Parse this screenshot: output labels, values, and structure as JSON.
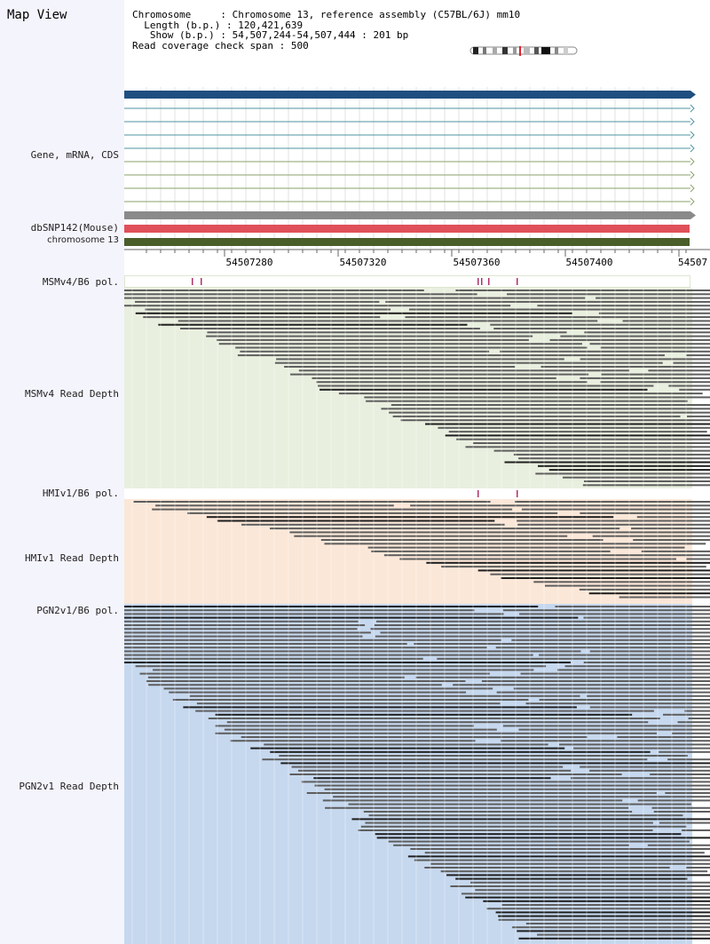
{
  "page": {
    "title": "Map View"
  },
  "info": {
    "chromosome_label": "Chromosome",
    "chromosome_value": "Chromosome 13, reference assembly (C57BL/6J) mm10",
    "length_label": "Length (b.p.)",
    "length_value": "120,421,639",
    "show_label": "Show (b.p.)",
    "show_value": "54,507,244-54,507,444 : 201 bp",
    "coverage_label": "Read coverage check span",
    "coverage_value": "500"
  },
  "labels": {
    "gene": "Gene, mRNA, CDS",
    "dbsnp": "dbSNP142(Mouse)",
    "chromosome": "chromosome 13",
    "msm_pol": "MSMv4/B6 pol.",
    "msm_depth": "MSMv4 Read Depth",
    "hmi_pol": "HMIv1/B6 pol.",
    "hmi_depth": "HMIv1 Read Depth",
    "pgn_pol": "PGN2v1/B6 pol.",
    "pgn_depth": "PGN2v1 Read Depth"
  },
  "ruler": {
    "ticks": [
      "54507280",
      "54507320",
      "54507360",
      "54507400",
      "54507"
    ]
  },
  "colors": {
    "gene_main": "#1f4e80",
    "mrna": "#4f93a0",
    "cds": "#8aa26a",
    "gene_grey": "#8a8a8a",
    "dbsnp": "#e0505a",
    "chromosome": "#4a5e2a",
    "msm_bg": "#e9efdf",
    "hmi_bg": "#fbe7d8",
    "pgn_bg": "#c6d8ee",
    "polymorphism": "#b0306a",
    "read": "#5e5e5e",
    "read_dark": "#1e1e1e"
  }
}
